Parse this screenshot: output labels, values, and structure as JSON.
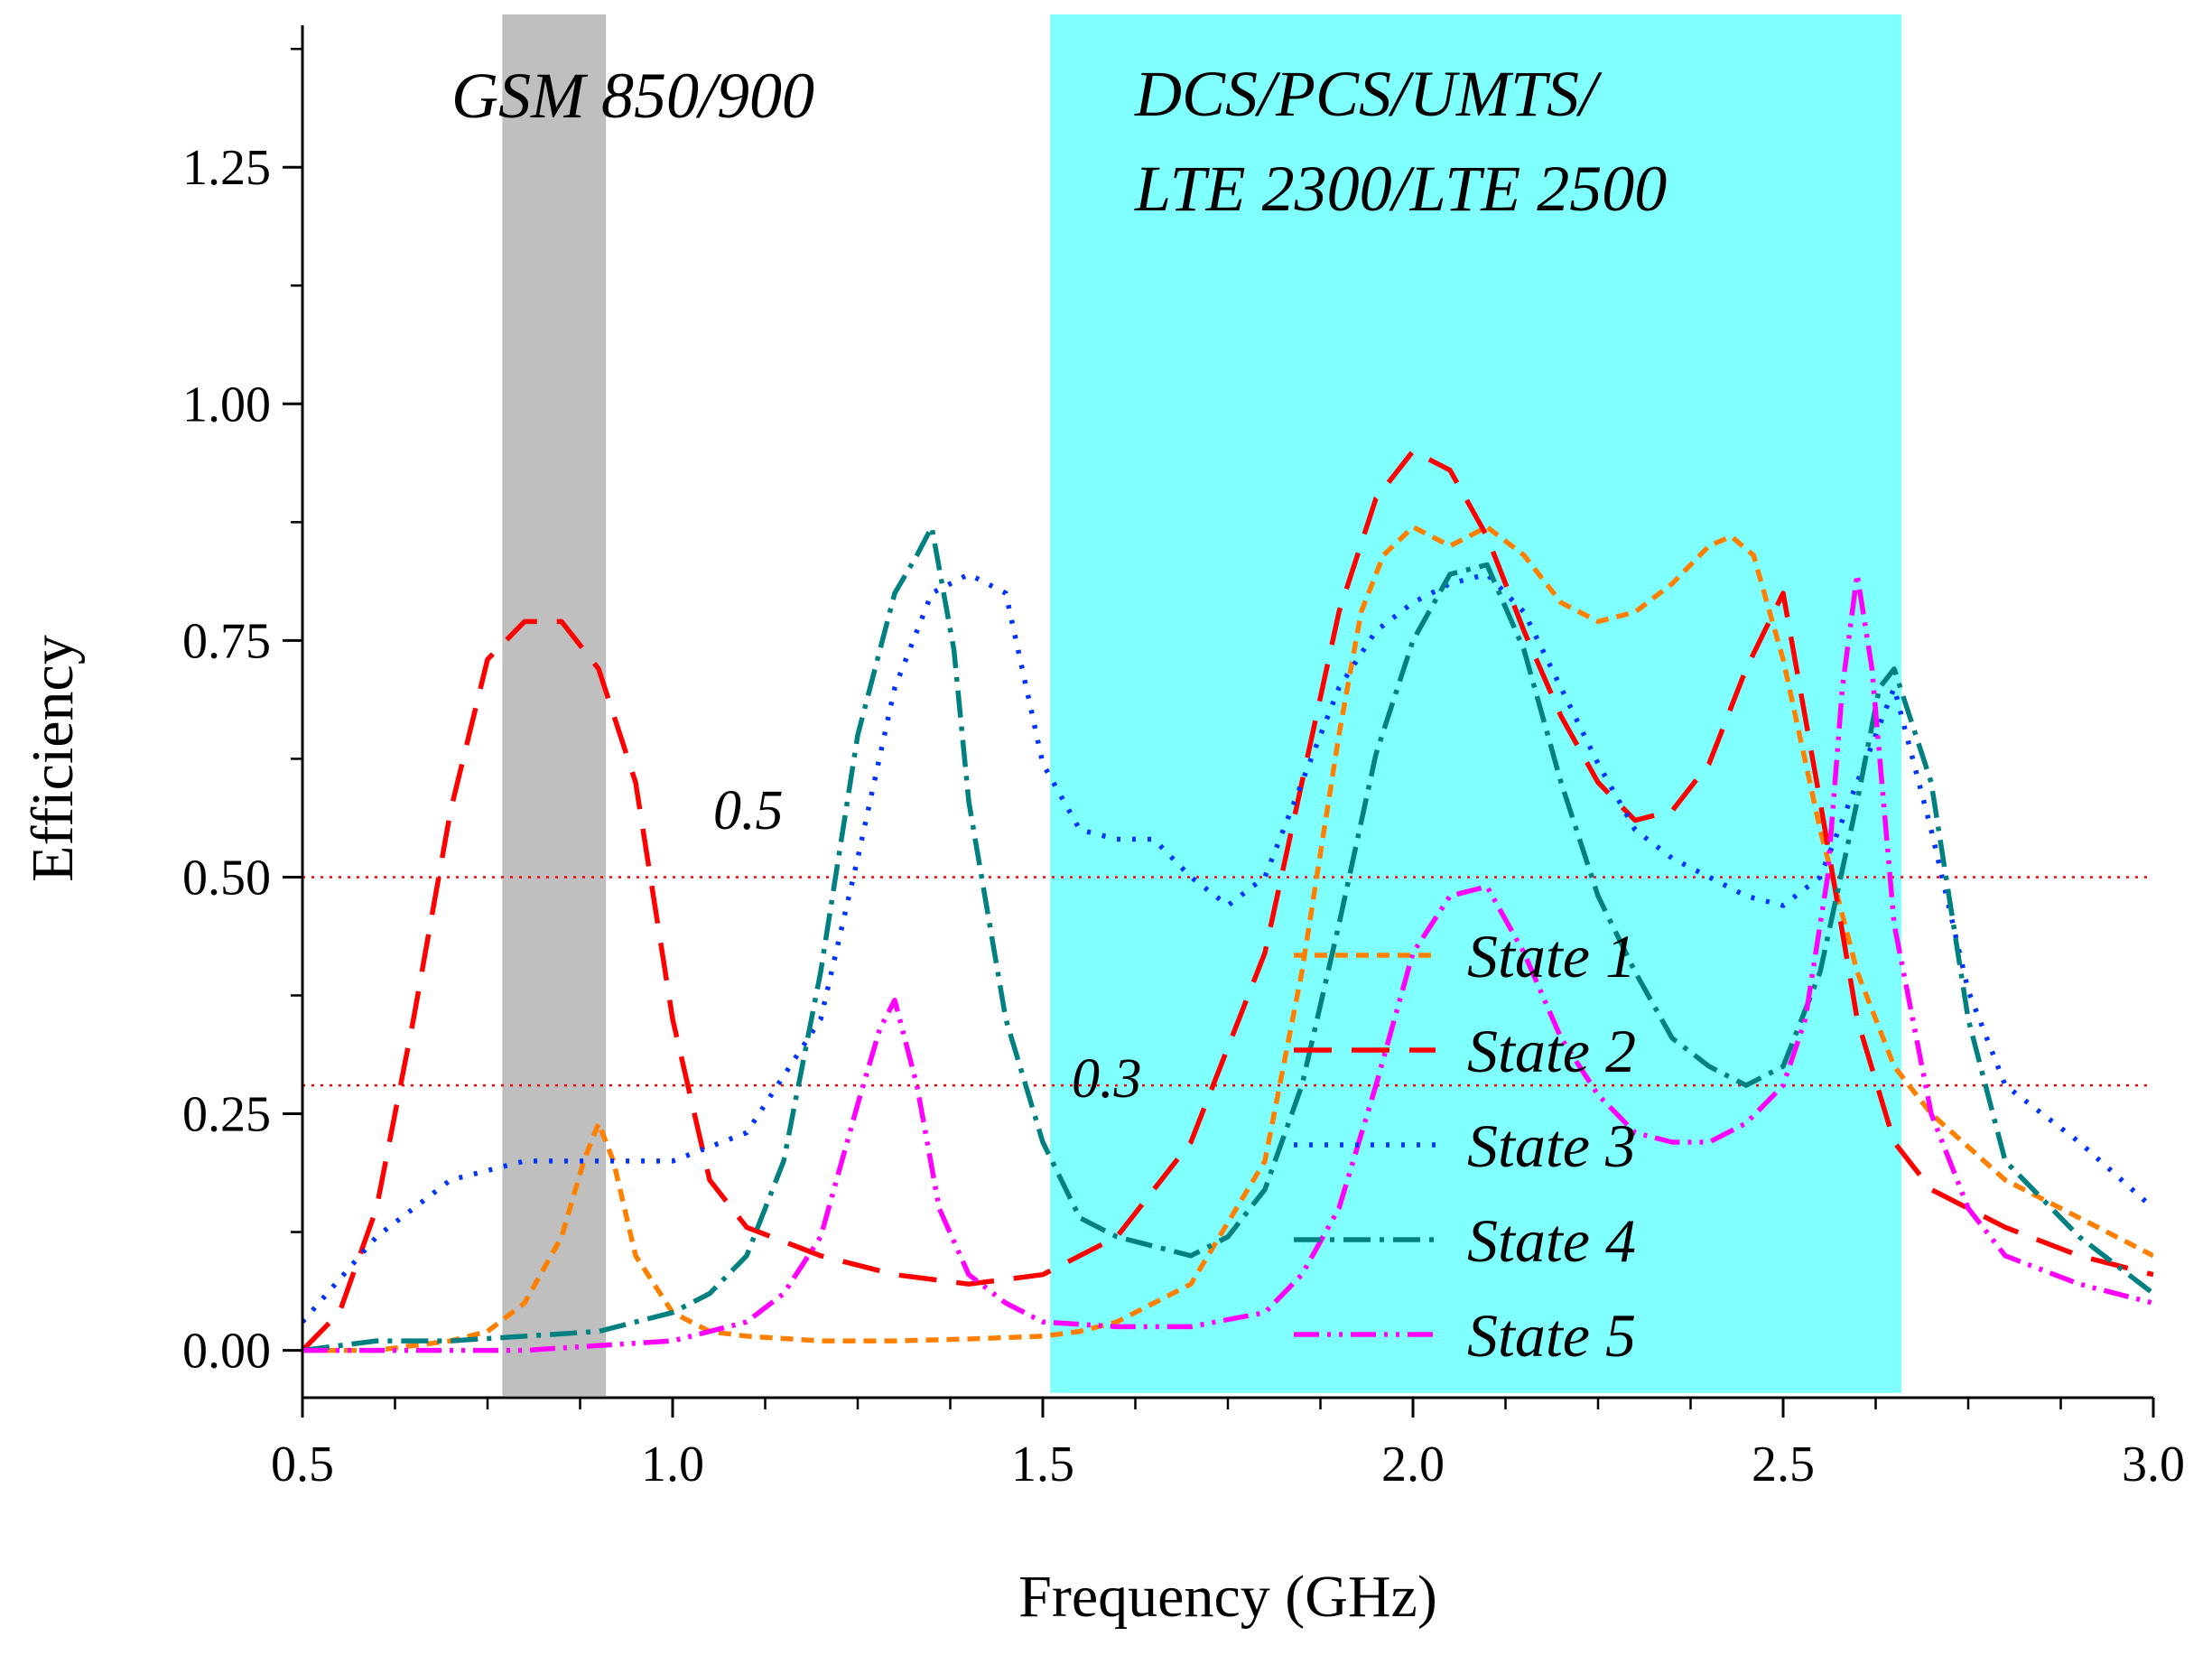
{
  "chart_data": {
    "type": "line",
    "title": "",
    "xlabel": "Frequency (GHz)",
    "ylabel": "Efficiency",
    "xlim": [
      0.5,
      3.0
    ],
    "ylim": [
      -0.05,
      1.4
    ],
    "x_ticks": [
      0.5,
      1.0,
      1.5,
      2.0,
      2.5,
      3.0
    ],
    "x_tick_labels": [
      "0.5",
      "1.0",
      "1.5",
      "2.0",
      "2.5",
      "3.0"
    ],
    "y_ticks": [
      0.0,
      0.25,
      0.5,
      0.75,
      1.0,
      1.25
    ],
    "y_tick_labels": [
      "0.00",
      "0.25",
      "0.50",
      "0.75",
      "1.00",
      "1.25"
    ],
    "grid": false,
    "legend_position": "center-right",
    "bands": [
      {
        "label": "GSM 850/900",
        "x_start": 0.77,
        "x_end": 0.91,
        "color": "#bfbfbf"
      },
      {
        "label_lines": [
          "DCS/PCS/UMTS/",
          "LTE 2300/LTE 2500"
        ],
        "x_start": 1.51,
        "x_end": 2.66,
        "color": "#80ffff"
      }
    ],
    "reference_lines": [
      {
        "y": 0.5,
        "label": "0.5",
        "label_x": 0.56,
        "label_y": 0.57,
        "color": "#ff0000"
      },
      {
        "y": 0.28,
        "label": "0.3",
        "label_x": 1.54,
        "label_y": 0.27,
        "color": "#ff0000"
      }
    ],
    "series": [
      {
        "name": "State 1",
        "color": "#ff8000",
        "dash": "14 9",
        "x": [
          0.5,
          0.6,
          0.7,
          0.75,
          0.8,
          0.85,
          0.88,
          0.9,
          0.92,
          0.95,
          1.0,
          1.05,
          1.1,
          1.2,
          1.3,
          1.4,
          1.5,
          1.55,
          1.6,
          1.7,
          1.8,
          1.85,
          1.9,
          1.93,
          1.96,
          2.0,
          2.05,
          2.1,
          2.15,
          2.2,
          2.25,
          2.3,
          2.35,
          2.4,
          2.43,
          2.46,
          2.5,
          2.55,
          2.6,
          2.65,
          2.7,
          2.8,
          2.9,
          3.0
        ],
        "values": [
          0.0,
          0.0,
          0.01,
          0.02,
          0.05,
          0.12,
          0.2,
          0.24,
          0.2,
          0.1,
          0.04,
          0.02,
          0.015,
          0.01,
          0.01,
          0.012,
          0.015,
          0.02,
          0.03,
          0.07,
          0.2,
          0.4,
          0.65,
          0.78,
          0.84,
          0.87,
          0.85,
          0.87,
          0.84,
          0.79,
          0.77,
          0.78,
          0.81,
          0.85,
          0.86,
          0.84,
          0.73,
          0.55,
          0.4,
          0.3,
          0.25,
          0.18,
          0.14,
          0.1
        ]
      },
      {
        "name": "State 2",
        "color": "#ff0000",
        "dash": "42 22",
        "x": [
          0.5,
          0.55,
          0.6,
          0.65,
          0.7,
          0.75,
          0.8,
          0.85,
          0.9,
          0.95,
          1.0,
          1.05,
          1.1,
          1.2,
          1.3,
          1.4,
          1.5,
          1.6,
          1.7,
          1.8,
          1.85,
          1.9,
          1.95,
          2.0,
          2.05,
          2.1,
          2.15,
          2.2,
          2.25,
          2.3,
          2.35,
          2.4,
          2.45,
          2.5,
          2.55,
          2.6,
          2.65,
          2.7,
          2.8,
          2.9,
          3.0
        ],
        "values": [
          0.0,
          0.04,
          0.15,
          0.35,
          0.57,
          0.73,
          0.77,
          0.77,
          0.72,
          0.6,
          0.35,
          0.18,
          0.13,
          0.1,
          0.08,
          0.07,
          0.08,
          0.12,
          0.22,
          0.42,
          0.6,
          0.78,
          0.9,
          0.95,
          0.93,
          0.86,
          0.76,
          0.67,
          0.6,
          0.56,
          0.57,
          0.62,
          0.72,
          0.8,
          0.58,
          0.35,
          0.22,
          0.17,
          0.13,
          0.1,
          0.08
        ]
      },
      {
        "name": "State 3",
        "color": "#0033ff",
        "dash": "4 13",
        "x": [
          0.5,
          0.6,
          0.7,
          0.8,
          0.9,
          1.0,
          1.1,
          1.2,
          1.25,
          1.3,
          1.35,
          1.4,
          1.45,
          1.5,
          1.55,
          1.6,
          1.65,
          1.7,
          1.75,
          1.8,
          1.85,
          1.9,
          1.95,
          2.0,
          2.05,
          2.1,
          2.15,
          2.2,
          2.25,
          2.3,
          2.35,
          2.4,
          2.45,
          2.5,
          2.55,
          2.6,
          2.65,
          2.7,
          2.75,
          2.8,
          2.9,
          3.0
        ],
        "values": [
          0.03,
          0.12,
          0.18,
          0.2,
          0.2,
          0.2,
          0.23,
          0.35,
          0.52,
          0.7,
          0.8,
          0.82,
          0.8,
          0.62,
          0.55,
          0.54,
          0.54,
          0.5,
          0.47,
          0.5,
          0.6,
          0.7,
          0.76,
          0.79,
          0.81,
          0.82,
          0.78,
          0.7,
          0.62,
          0.55,
          0.52,
          0.5,
          0.48,
          0.47,
          0.5,
          0.6,
          0.7,
          0.55,
          0.38,
          0.28,
          0.22,
          0.15
        ]
      },
      {
        "name": "State 4",
        "color": "#008080",
        "dash": "30 10 5 10",
        "x": [
          0.5,
          0.6,
          0.7,
          0.8,
          0.9,
          1.0,
          1.05,
          1.1,
          1.15,
          1.2,
          1.25,
          1.3,
          1.33,
          1.35,
          1.38,
          1.4,
          1.45,
          1.5,
          1.55,
          1.6,
          1.65,
          1.7,
          1.75,
          1.8,
          1.85,
          1.9,
          1.95,
          2.0,
          2.05,
          2.1,
          2.15,
          2.2,
          2.25,
          2.3,
          2.35,
          2.4,
          2.45,
          2.5,
          2.55,
          2.6,
          2.63,
          2.65,
          2.7,
          2.75,
          2.8,
          2.9,
          3.0
        ],
        "values": [
          0.0,
          0.01,
          0.01,
          0.015,
          0.02,
          0.04,
          0.06,
          0.1,
          0.2,
          0.4,
          0.65,
          0.8,
          0.84,
          0.87,
          0.74,
          0.58,
          0.35,
          0.22,
          0.14,
          0.12,
          0.11,
          0.1,
          0.12,
          0.17,
          0.28,
          0.45,
          0.63,
          0.75,
          0.82,
          0.83,
          0.74,
          0.6,
          0.48,
          0.4,
          0.33,
          0.3,
          0.28,
          0.3,
          0.4,
          0.58,
          0.7,
          0.72,
          0.6,
          0.35,
          0.2,
          0.12,
          0.06
        ]
      },
      {
        "name": "State 5",
        "color": "#ff00ff",
        "dash": "28 9 4 9 4 9",
        "x": [
          0.5,
          0.6,
          0.7,
          0.8,
          0.9,
          1.0,
          1.1,
          1.15,
          1.2,
          1.25,
          1.28,
          1.3,
          1.33,
          1.36,
          1.4,
          1.45,
          1.5,
          1.6,
          1.7,
          1.8,
          1.85,
          1.9,
          1.95,
          2.0,
          2.05,
          2.1,
          2.15,
          2.2,
          2.25,
          2.3,
          2.35,
          2.4,
          2.45,
          2.5,
          2.53,
          2.56,
          2.58,
          2.6,
          2.62,
          2.65,
          2.7,
          2.75,
          2.8,
          2.9,
          3.0
        ],
        "values": [
          0.0,
          0.0,
          0.0,
          0.0,
          0.005,
          0.01,
          0.03,
          0.06,
          0.12,
          0.26,
          0.34,
          0.37,
          0.28,
          0.15,
          0.08,
          0.05,
          0.03,
          0.025,
          0.025,
          0.04,
          0.08,
          0.15,
          0.28,
          0.42,
          0.48,
          0.49,
          0.42,
          0.33,
          0.27,
          0.23,
          0.22,
          0.22,
          0.24,
          0.28,
          0.35,
          0.5,
          0.7,
          0.82,
          0.72,
          0.45,
          0.25,
          0.15,
          0.1,
          0.07,
          0.05
        ]
      }
    ]
  }
}
